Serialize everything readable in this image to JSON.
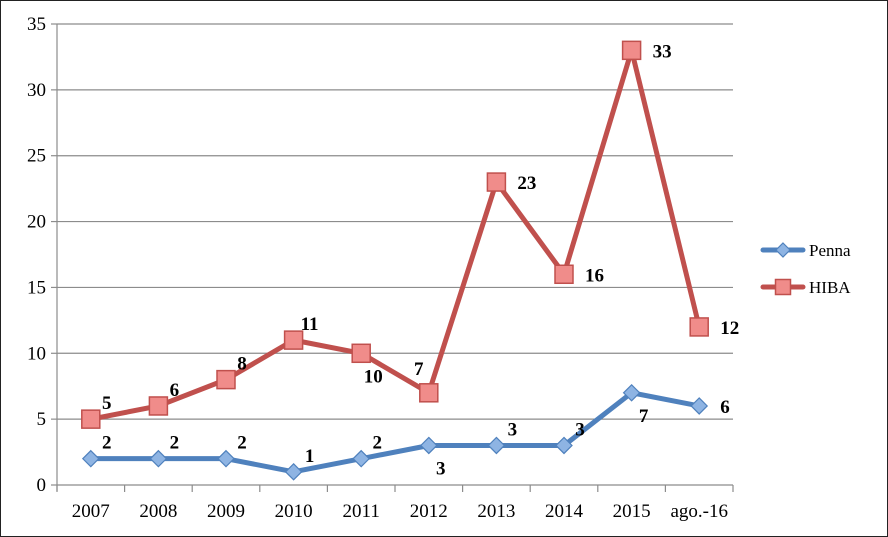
{
  "chart_data": {
    "type": "line",
    "categories": [
      "2007",
      "2008",
      "2009",
      "2010",
      "2011",
      "2012",
      "2013",
      "2014",
      "2015",
      "ago.-16"
    ],
    "ylim": [
      0,
      35
    ],
    "yticks": [
      0,
      5,
      10,
      15,
      20,
      25,
      30,
      35
    ],
    "grid": "horizontal",
    "legend_position": "right",
    "series": [
      {
        "name": "Penna",
        "values": [
          2,
          2,
          2,
          1,
          2,
          3,
          3,
          3,
          7,
          6
        ],
        "color": "#4F81BD",
        "marker": "diamond",
        "marker_fill": "#8EB4E3",
        "label_position": [
          "above",
          "above",
          "above",
          "above",
          "above",
          "below",
          "above",
          "above",
          "below",
          "right"
        ]
      },
      {
        "name": "HIBA",
        "values": [
          5,
          6,
          8,
          11,
          10,
          7,
          23,
          16,
          33,
          12
        ],
        "color": "#C0504D",
        "marker": "square",
        "marker_fill": "#F08C8A",
        "label_position": [
          "above",
          "above",
          "above",
          "above",
          "below",
          "above-left",
          "right",
          "right",
          "right",
          "right"
        ]
      }
    ]
  }
}
